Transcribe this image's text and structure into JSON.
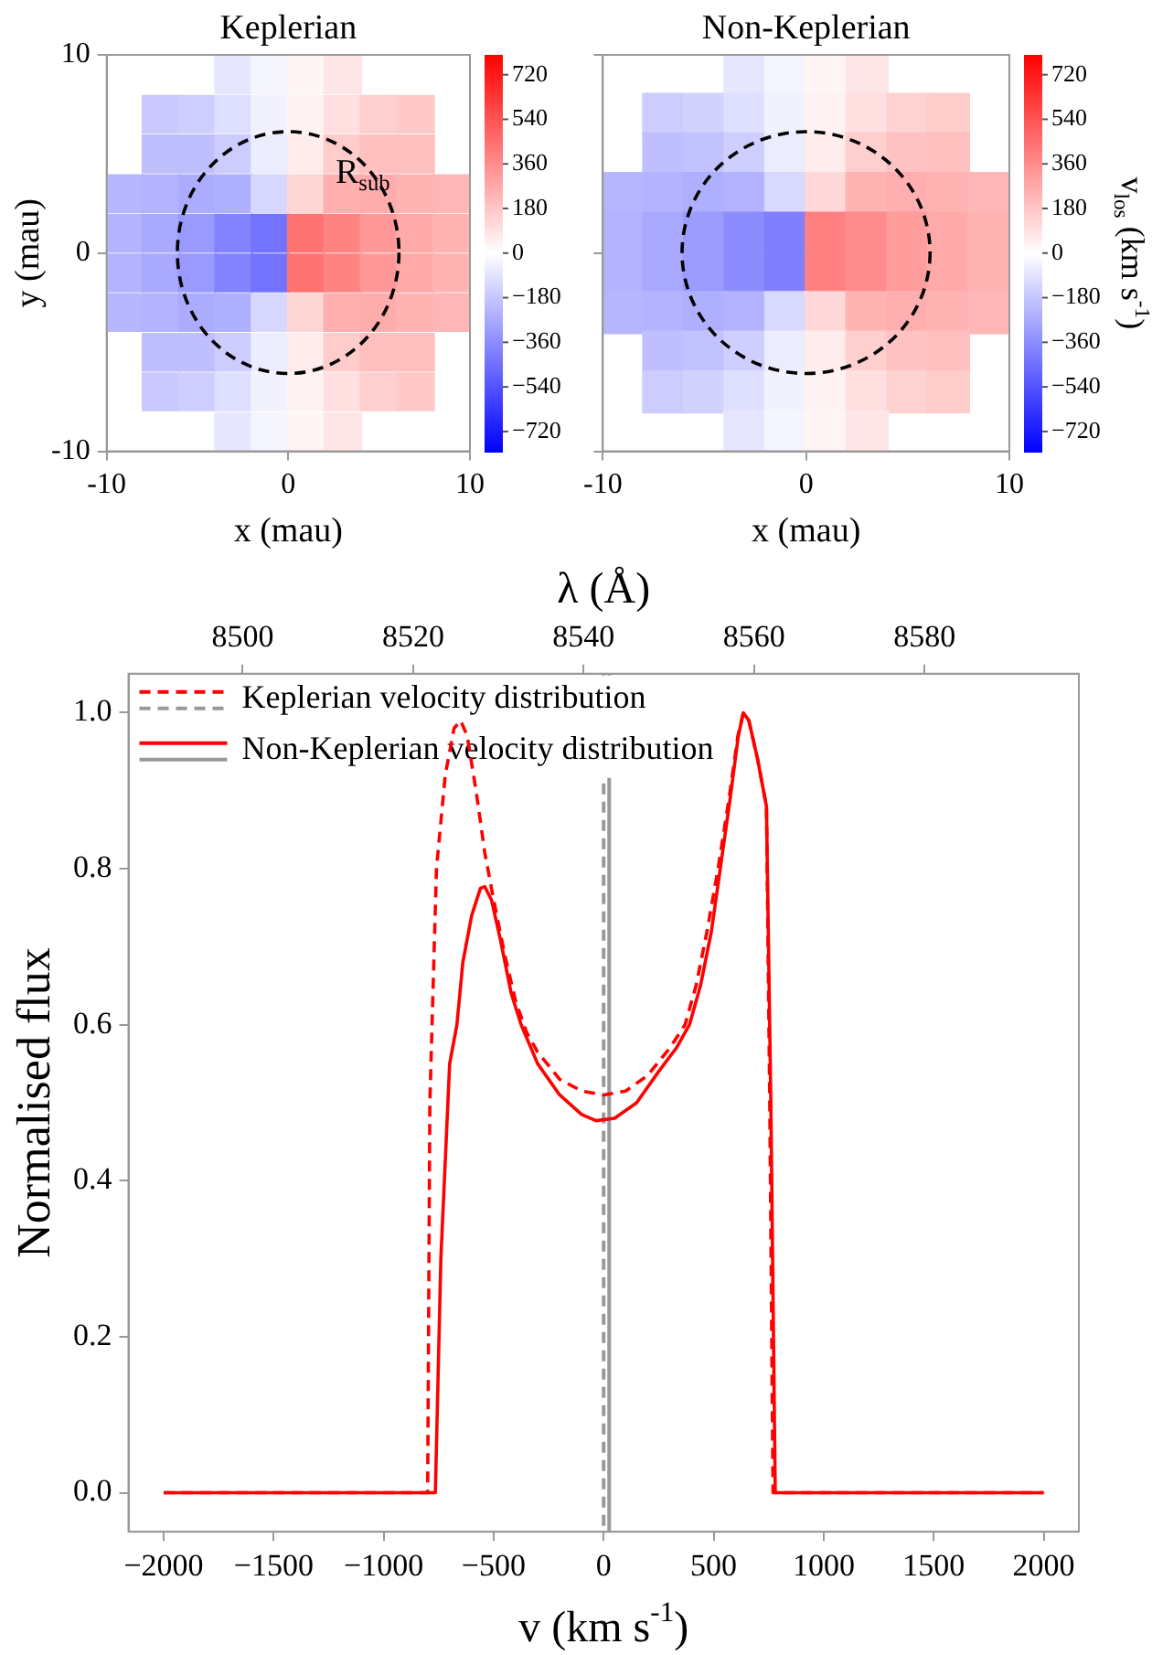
{
  "chart_data": [
    {
      "type": "scatter",
      "title": "Keplerian",
      "xlabel": "x (mau)",
      "ylabel": "y (mau)",
      "xlim": [
        -10,
        10
      ],
      "xticks": [
        {
          "value": -10,
          "label": "-10"
        },
        0,
        10
      ],
      "ylim": [
        -10,
        10
      ],
      "yticks": [
        {
          "value": -10,
          "label": "-10"
        },
        0,
        10
      ],
      "clim": [
        -800,
        800
      ],
      "cticks": [
        {
          "value": -720,
          "label": "−720"
        },
        {
          "value": -540,
          "label": "−540"
        },
        {
          "value": -360,
          "label": "−360"
        },
        {
          "value": -180,
          "label": "−180"
        },
        0,
        180,
        360,
        540,
        720
      ],
      "series": [
        {
          "type": "scatter",
          "marker": "square",
          "x": [
            -3,
            -1,
            1,
            3,
            -7,
            -5,
            -3,
            -1,
            1,
            3,
            5,
            7,
            -7,
            -5,
            -3,
            -1,
            1,
            3,
            5,
            7,
            -9,
            -7,
            -5,
            -3,
            -1,
            1,
            3,
            5,
            7,
            9,
            -9,
            -7,
            -5,
            -3,
            -1,
            1,
            3,
            5,
            7,
            9,
            -9,
            -7,
            -5,
            -3,
            -1,
            1,
            3,
            5,
            7,
            9,
            -9,
            -7,
            -5,
            -3,
            -1,
            1,
            3,
            5,
            7,
            9,
            -7,
            -5,
            -3,
            -1,
            1,
            3,
            5,
            7,
            -7,
            -5,
            -3,
            -1,
            1,
            3,
            5,
            7,
            -3,
            -1,
            1,
            3
          ],
          "values": [
            9,
            9,
            9,
            9,
            7,
            7,
            7,
            7,
            7,
            7,
            7,
            7,
            5,
            5,
            5,
            5,
            5,
            5,
            5,
            5,
            3,
            3,
            3,
            3,
            3,
            3,
            3,
            3,
            3,
            3,
            1,
            1,
            1,
            1,
            1,
            1,
            1,
            1,
            1,
            1,
            -1,
            -1,
            -1,
            -1,
            -1,
            -1,
            -1,
            -1,
            -1,
            -1,
            -3,
            -3,
            -3,
            -3,
            -3,
            -3,
            -3,
            -3,
            -3,
            -3,
            -5,
            -5,
            -5,
            -5,
            -5,
            -5,
            -5,
            -5,
            -7,
            -7,
            -7,
            -7,
            -7,
            -7,
            -7,
            -7,
            -9,
            -9,
            -9,
            -9
          ],
          "cvalues": [
            -80,
            -30,
            30,
            80,
            -170,
            -150,
            -100,
            -40,
            40,
            100,
            150,
            170,
            -200,
            -200,
            -160,
            -60,
            60,
            160,
            200,
            200,
            -230,
            -240,
            -260,
            -250,
            -130,
            130,
            250,
            260,
            240,
            230,
            -240,
            -270,
            -320,
            -390,
            -440,
            440,
            390,
            320,
            270,
            240,
            -240,
            -270,
            -320,
            -390,
            -440,
            440,
            390,
            320,
            270,
            240,
            -230,
            -240,
            -260,
            -250,
            -130,
            130,
            250,
            260,
            240,
            230,
            -200,
            -200,
            -160,
            -60,
            60,
            160,
            200,
            200,
            -170,
            -150,
            -100,
            -40,
            40,
            100,
            150,
            170,
            -80,
            -30,
            30,
            80
          ]
        }
      ],
      "annotations": [
        "R$_{sub}$"
      ]
    },
    {
      "type": "scatter",
      "title": "Non-Keplerian",
      "xlabel": "x (mau)",
      "clabel": "v$_{los}$ (km s$^{-1}$)",
      "xlim": [
        -10,
        10
      ],
      "xticks": [
        {
          "value": -10,
          "label": "-10"
        },
        0,
        10
      ],
      "ylim": [
        -10,
        10
      ],
      "yticks": [
        -10,
        0,
        10
      ],
      "tick_labels": "x",
      "clim": [
        -800,
        800
      ],
      "cticks": [
        {
          "value": -720,
          "label": "−720"
        },
        {
          "value": -540,
          "label": "−540"
        },
        {
          "value": -360,
          "label": "−360"
        },
        {
          "value": -180,
          "label": "−180"
        },
        0,
        180,
        360,
        540,
        720
      ],
      "series": [
        {
          "type": "scatter",
          "marker": "square",
          "x": [
            -3,
            -1,
            1,
            3,
            -7,
            -5,
            -3,
            -1,
            1,
            3,
            5,
            7,
            -7,
            -5,
            -3,
            -1,
            1,
            3,
            5,
            7,
            -9,
            -7,
            -5,
            -3,
            -1,
            1,
            3,
            5,
            7,
            9,
            -9,
            -7,
            -5,
            -3,
            -1,
            1,
            3,
            5,
            7,
            9,
            -9,
            -7,
            -5,
            -3,
            -1,
            1,
            3,
            5,
            7,
            9,
            -9,
            -7,
            -5,
            -3,
            -1,
            1,
            3,
            5,
            7,
            9,
            -7,
            -5,
            -3,
            -1,
            1,
            3,
            5,
            7,
            -7,
            -5,
            -3,
            -1,
            1,
            3,
            5,
            7,
            -3,
            -1,
            1,
            3
          ],
          "values": [
            9,
            9,
            9,
            9,
            7,
            7,
            7,
            7,
            7,
            7,
            7,
            7,
            5,
            5,
            5,
            5,
            5,
            5,
            5,
            5,
            3,
            3,
            3,
            3,
            3,
            3,
            3,
            3,
            3,
            3,
            1,
            1,
            1,
            1,
            1,
            1,
            1,
            1,
            1,
            1,
            -1,
            -1,
            -1,
            -1,
            -1,
            -1,
            -1,
            -1,
            -1,
            -1,
            -3,
            -3,
            -3,
            -3,
            -3,
            -3,
            -3,
            -3,
            -3,
            -3,
            -5,
            -5,
            -5,
            -5,
            -5,
            -5,
            -5,
            -5,
            -7,
            -7,
            -7,
            -7,
            -7,
            -7,
            -7,
            -7,
            -9,
            -9,
            -9,
            -9
          ],
          "cvalues": [
            -80,
            -30,
            30,
            80,
            -160,
            -140,
            -100,
            -40,
            40,
            100,
            140,
            160,
            -200,
            -190,
            -150,
            -60,
            60,
            150,
            190,
            200,
            -230,
            -240,
            -250,
            -240,
            -120,
            120,
            240,
            250,
            240,
            230,
            -240,
            -270,
            -310,
            -360,
            -400,
            400,
            360,
            310,
            270,
            240,
            -240,
            -270,
            -310,
            -360,
            -400,
            400,
            360,
            310,
            270,
            240,
            -230,
            -240,
            -250,
            -240,
            -120,
            120,
            240,
            250,
            240,
            230,
            -200,
            -190,
            -150,
            -60,
            60,
            150,
            190,
            200,
            -160,
            -140,
            -100,
            -40,
            40,
            100,
            140,
            160,
            -80,
            -30,
            30,
            80
          ]
        }
      ]
    },
    {
      "type": "line",
      "xlabel": "v (km s$^{-1}$)",
      "ylabel": "Normalised flux",
      "x2label": "λ (Å)",
      "xlim": [
        -2160,
        2160
      ],
      "xticks": [
        {
          "value": -2000,
          "label": "−2000"
        },
        {
          "value": -1500,
          "label": "−1500"
        },
        {
          "value": -1000,
          "label": "−1000"
        },
        {
          "value": -500,
          "label": "−500"
        },
        0,
        500,
        1000,
        1500,
        2000
      ],
      "x2lim": [
        8486.6,
        8598.1
      ],
      "x2ticks": [
        8500,
        8520,
        8540,
        8560,
        8580
      ],
      "ylim": [
        -0.05,
        1.05
      ],
      "yticks": [
        {
          "value": 0,
          "label": "0.0"
        },
        {
          "value": 0.2,
          "label": "0.2"
        },
        {
          "value": 0.4,
          "label": "0.4"
        },
        {
          "value": 0.6,
          "label": "0.6"
        },
        {
          "value": 0.8,
          "label": "0.8"
        },
        {
          "value": 1,
          "label": "1.0"
        }
      ],
      "legend": "top left",
      "marker": "none",
      "series": [
        {
          "name": "Keplerian velocity distribution",
          "color": "#ff0000",
          "line_style": "dashed",
          "x": [
            -2000,
            -800,
            -790,
            -760,
            -720,
            -680,
            -650,
            -620,
            -580,
            -540,
            -500,
            -450,
            -400,
            -350,
            -300,
            -200,
            -100,
            0,
            100,
            200,
            300,
            370,
            420,
            470,
            520,
            570,
            610,
            635,
            660,
            700,
            740,
            755,
            770,
            2000
          ],
          "values": [
            0,
            0,
            0.5,
            0.8,
            0.92,
            0.98,
            0.99,
            0.97,
            0.9,
            0.82,
            0.76,
            0.69,
            0.63,
            0.59,
            0.565,
            0.53,
            0.515,
            0.51,
            0.515,
            0.535,
            0.57,
            0.6,
            0.65,
            0.72,
            0.8,
            0.89,
            0.97,
            1.0,
            0.99,
            0.94,
            0.88,
            0.5,
            0,
            0
          ]
        },
        {
          "name": "Non-Keplerian velocity distribution",
          "color": "#ff0000",
          "line_style": "solid",
          "x": [
            -2000,
            -765,
            -740,
            -700,
            -667,
            -640,
            -600,
            -560,
            -540,
            -510,
            -470,
            -420,
            -375,
            -300,
            -200,
            -100,
            -35,
            50,
            150,
            250,
            330,
            390,
            440,
            490,
            530,
            575,
            612,
            635,
            660,
            700,
            740,
            760,
            780,
            2000
          ],
          "values": [
            0,
            0,
            0.3,
            0.55,
            0.6,
            0.68,
            0.74,
            0.775,
            0.777,
            0.76,
            0.71,
            0.64,
            0.6,
            0.55,
            0.51,
            0.485,
            0.477,
            0.48,
            0.5,
            0.54,
            0.57,
            0.6,
            0.65,
            0.72,
            0.8,
            0.89,
            0.97,
            1.0,
            0.99,
            0.94,
            0.88,
            0.5,
            0,
            0
          ]
        }
      ],
      "ref_lines": [
        {
          "axis": "x",
          "value": 0,
          "color": "#999999",
          "line_style": "dashed"
        },
        {
          "axis": "x",
          "value": 25,
          "color": "#999999",
          "line_style": "solid"
        }
      ]
    }
  ]
}
